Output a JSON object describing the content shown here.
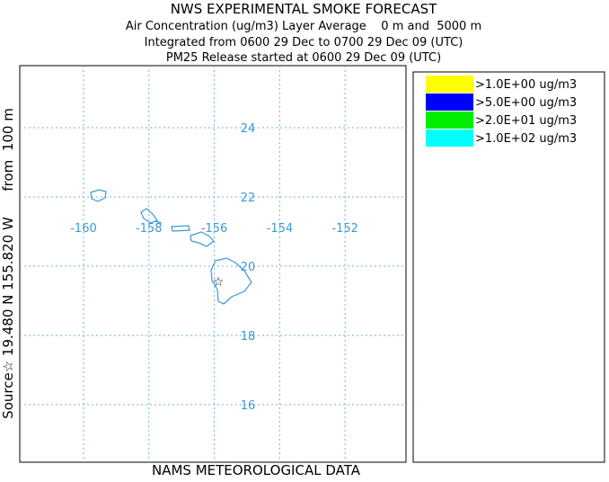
{
  "header": {
    "title": "NWS EXPERIMENTAL SMOKE FORECAST",
    "lines": [
      "Air Concentration (ug/m3) Layer Average    0 m and  5000 m",
      "Integrated from 0600 29 Dec to 0700 29 Dec 09 (UTC)",
      "PM25 Release started at 0600 29 Dec 09 (UTC)"
    ]
  },
  "map": {
    "lon_ticks": [
      -160,
      -158,
      -156,
      -154,
      -152
    ],
    "lat_ticks": [
      24,
      22,
      20,
      18,
      16
    ],
    "source_label": "Source☆ 19.480 N 155.820 W      from  100 m",
    "footer": "NAMS METEOROLOGICAL DATA"
  },
  "legend": {
    "entries": [
      {
        "label": ">1.0E+00 ug/m3",
        "color": "#ffff00"
      },
      {
        "label": ">5.0E+00 ug/m3",
        "color": "#0000ff"
      },
      {
        "label": ">2.0E+01 ug/m3",
        "color": "#00ee00"
      },
      {
        "label": ">1.0E+02 ug/m3",
        "color": "#00ffff"
      }
    ]
  }
}
